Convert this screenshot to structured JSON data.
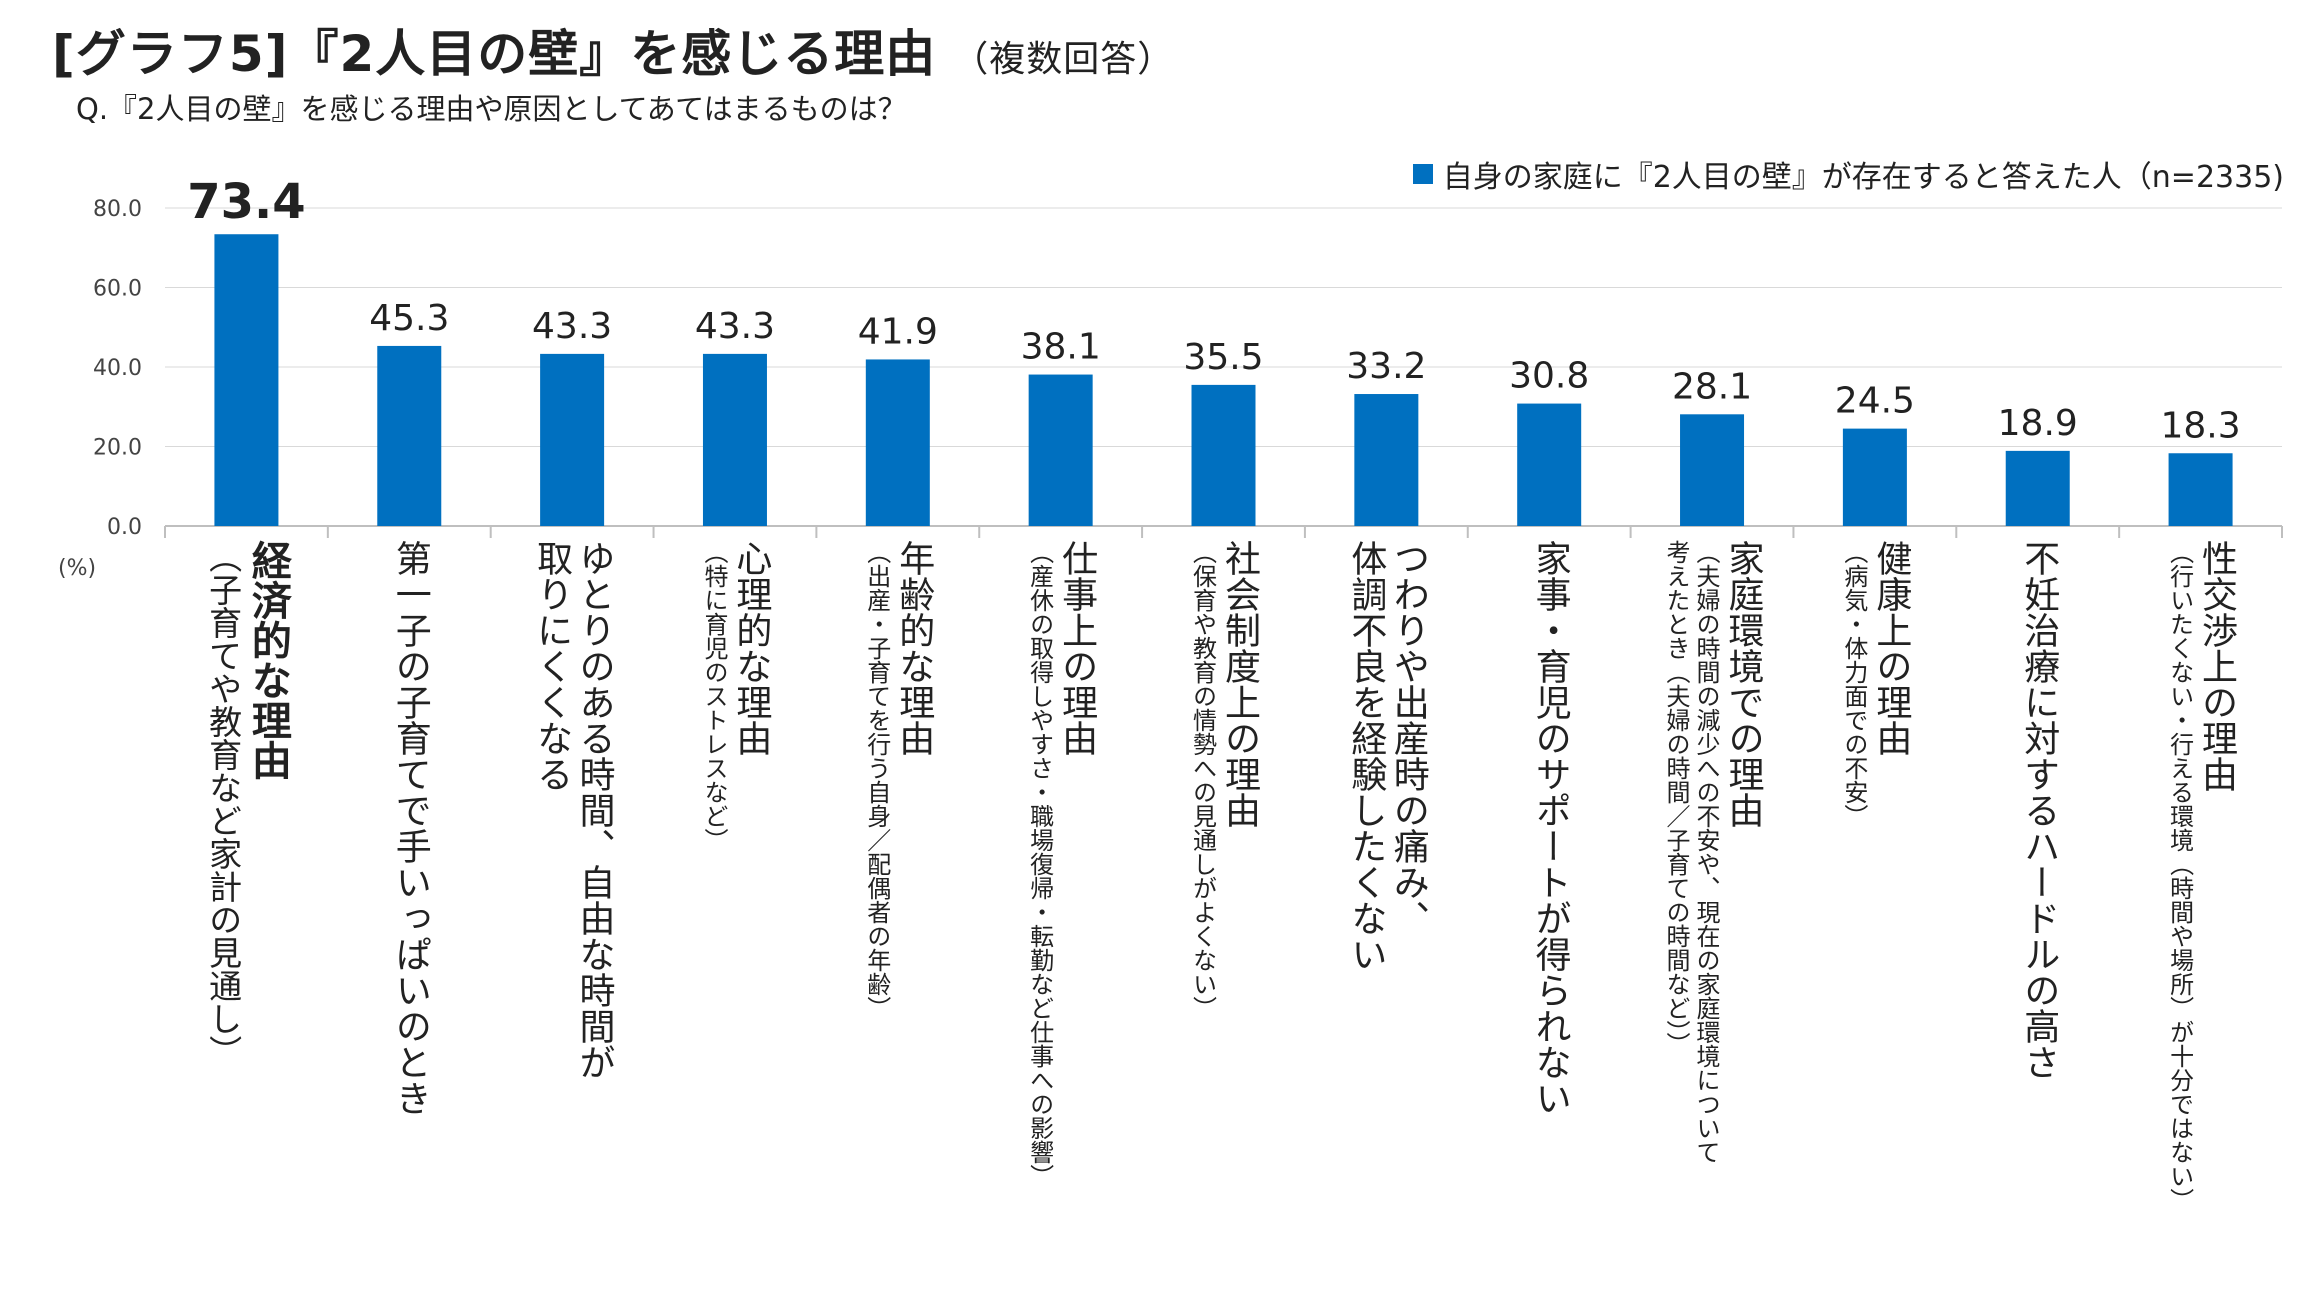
{
  "header": {
    "title": "[グラフ5]『2人目の壁』を感じる理由",
    "note": "（複数回答）",
    "question": "Q.『2人目の壁』を感じる理由や原因としてあてはまるものは？"
  },
  "unit_label": "(%)",
  "colors": {
    "bar": "#0070c0",
    "axis": "#bfbfbf",
    "grid": "#d9d9d9"
  },
  "chart_data": {
    "type": "bar",
    "ylim": [
      0,
      80
    ],
    "yticks": [
      "0.0",
      "20.0",
      "40.0",
      "60.0",
      "80.0"
    ],
    "grid": true,
    "legend_position": "top-right",
    "series": [
      {
        "name": "自身の家庭に『2人目の壁』が存在すると答えた人（n=2335)",
        "values": [
          73.4,
          45.3,
          43.3,
          43.3,
          41.9,
          38.1,
          35.5,
          33.2,
          30.8,
          28.1,
          24.5,
          18.9,
          18.3
        ]
      }
    ],
    "value_labels": [
      "73.4",
      "45.3",
      "43.3",
      "43.3",
      "41.9",
      "38.1",
      "35.5",
      "33.2",
      "30.8",
      "28.1",
      "24.5",
      "18.9",
      "18.3"
    ],
    "categories": [
      {
        "main": [
          "経済的な理由"
        ],
        "sub": [
          "（子育てや教育など家計の見通し）"
        ],
        "emphasis": true
      },
      {
        "main": [
          "第一子の子育てで手いっぱいのとき"
        ],
        "sub": []
      },
      {
        "main": [
          "ゆとりのある時間、自由な時間が",
          "取りにくくなる"
        ],
        "sub": []
      },
      {
        "main": [
          "心理的な理由"
        ],
        "sub": [
          "（特に育児のストレスなど）"
        ]
      },
      {
        "main": [
          "年齢的な理由"
        ],
        "sub": [
          "（出産・子育てを行う自身／配偶者の年齢）"
        ]
      },
      {
        "main": [
          "仕事上の理由"
        ],
        "sub": [
          "（産休の取得しやすさ・職場復帰・転勤など仕事への影響）"
        ]
      },
      {
        "main": [
          "社会制度上の理由"
        ],
        "sub": [
          "（保育や教育の情勢への見通しがよくない）"
        ]
      },
      {
        "main": [
          "つわりや出産時の痛み、",
          "体調不良を経験したくない"
        ],
        "sub": []
      },
      {
        "main": [
          "家事・育児のサポートが得られない"
        ],
        "sub": []
      },
      {
        "main": [
          "家庭環境での理由"
        ],
        "sub": [
          "（夫婦の時間の減少への不安や、現在の家庭環境について",
          "考えたとき（夫婦の時間／子育ての時間など））"
        ]
      },
      {
        "main": [
          "健康上の理由"
        ],
        "sub": [
          "（病気・体力面での不安）"
        ]
      },
      {
        "main": [
          "不妊治療に対するハードルの高さ"
        ],
        "sub": []
      },
      {
        "main": [
          "性交渉上の理由"
        ],
        "sub": [
          "（行いたくない・行える環境（時間や場所）が十分ではない）"
        ]
      }
    ]
  }
}
